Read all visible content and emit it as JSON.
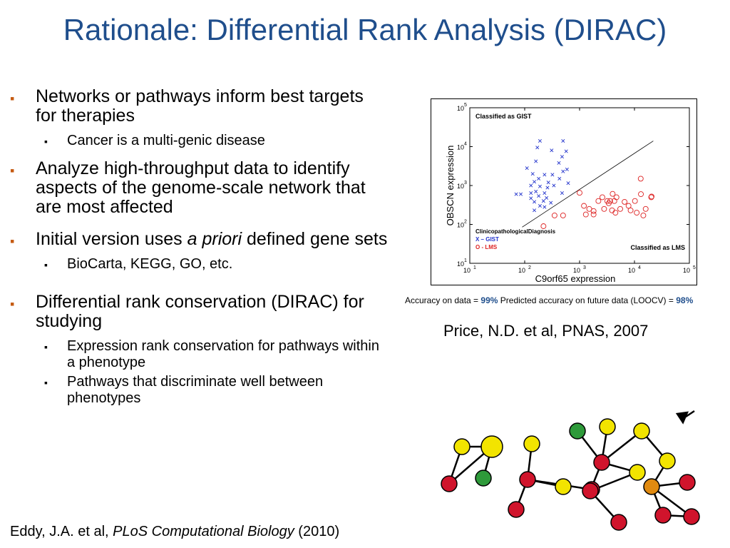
{
  "title": "Rationale: Differential Rank Analysis (DIRAC)",
  "bullets": [
    {
      "text": "Networks or pathways inform best targets for therapies",
      "sub": [
        "Cancer is a multi-genic disease"
      ]
    },
    {
      "text": "Analyze high-throughput data to identify aspects of the genome-scale network that are most affected",
      "sub": []
    },
    {
      "pre": "Initial version uses ",
      "em": "a priori",
      "post": " defined gene sets",
      "sub": [
        "BioCarta, KEGG, GO, etc."
      ]
    },
    {
      "text": "Differential rank conservation (DIRAC) for studying",
      "sub": [
        "Expression rank conservation for pathways within a phenotype",
        "Pathways that discriminate well between phenotypes"
      ]
    }
  ],
  "bullet_glyph": "▪",
  "chart_data": {
    "type": "scatter",
    "xlabel": "C9orf65 expression",
    "ylabel": "OBSCN expression",
    "xscale": "log",
    "yscale": "log",
    "xlim": [
      10,
      100000
    ],
    "ylim": [
      10,
      100000
    ],
    "x_ticks": [
      {
        "base": "10",
        "exp": "1"
      },
      {
        "base": "10",
        "exp": "2"
      },
      {
        "base": "10",
        "exp": "3"
      },
      {
        "base": "10",
        "exp": "4"
      },
      {
        "base": "10",
        "exp": "5"
      }
    ],
    "y_ticks": [
      {
        "base": "10",
        "exp": "1"
      },
      {
        "base": "10",
        "exp": "2"
      },
      {
        "base": "10",
        "exp": "3"
      },
      {
        "base": "10",
        "exp": "4"
      },
      {
        "base": "10",
        "exp": "5"
      }
    ],
    "annotations": {
      "top_left": "Classified as GIST",
      "bottom_right": "Classified as LMS"
    },
    "legend": {
      "title": "ClinicopathologicalDiagnosis",
      "placement": "bottom-left",
      "entries": [
        {
          "label": "X – GIST",
          "color": "#2233cc"
        },
        {
          "label": "O - LMS",
          "color": "#dd2222"
        }
      ]
    },
    "decision_line": [
      [
        90,
        85
      ],
      [
        22000,
        14000
      ]
    ],
    "series": [
      {
        "name": "GIST",
        "marker": "x",
        "color": "#2233cc",
        "points": [
          [
            190,
            14000
          ],
          [
            500,
            14000
          ],
          [
            170,
            9500
          ],
          [
            310,
            8000
          ],
          [
            570,
            7600
          ],
          [
            480,
            5500
          ],
          [
            160,
            4200
          ],
          [
            420,
            3800
          ],
          [
            110,
            2800
          ],
          [
            500,
            2300
          ],
          [
            590,
            2600
          ],
          [
            140,
            2000
          ],
          [
            230,
            1900
          ],
          [
            320,
            1900
          ],
          [
            180,
            1500
          ],
          [
            430,
            1500
          ],
          [
            270,
            1200
          ],
          [
            150,
            1250
          ],
          [
            620,
            1150
          ],
          [
            130,
            1000
          ],
          [
            190,
            950
          ],
          [
            260,
            880
          ],
          [
            340,
            1000
          ],
          [
            160,
            700
          ],
          [
            230,
            640
          ],
          [
            130,
            640
          ],
          [
            180,
            540
          ],
          [
            250,
            480
          ],
          [
            130,
            470
          ],
          [
            220,
            400
          ],
          [
            150,
            380
          ],
          [
            300,
            360
          ],
          [
            190,
            300
          ],
          [
            230,
            280
          ],
          [
            150,
            230
          ],
          [
            70,
            600
          ],
          [
            85,
            600
          ],
          [
            480,
            640
          ]
        ]
      },
      {
        "name": "LMS",
        "marker": "o",
        "color": "#dd2222",
        "points": [
          [
            1000,
            650
          ],
          [
            2600,
            500
          ],
          [
            4700,
            500
          ],
          [
            3200,
            400
          ],
          [
            3600,
            400
          ],
          [
            2200,
            400
          ],
          [
            3400,
            350
          ],
          [
            4300,
            400
          ],
          [
            6600,
            380
          ],
          [
            10200,
            400
          ],
          [
            13100,
            600
          ],
          [
            20200,
            500
          ],
          [
            1500,
            250
          ],
          [
            1800,
            220
          ],
          [
            1200,
            300
          ],
          [
            2800,
            250
          ],
          [
            3900,
            230
          ],
          [
            4500,
            200
          ],
          [
            5500,
            250
          ],
          [
            7800,
            300
          ],
          [
            11000,
            200
          ],
          [
            14500,
            170
          ],
          [
            16000,
            250
          ],
          [
            500,
            170
          ],
          [
            350,
            170
          ],
          [
            220,
            90
          ],
          [
            1300,
            180
          ],
          [
            1800,
            180
          ],
          [
            8500,
            230
          ],
          [
            20500,
            520
          ],
          [
            13000,
            1500
          ],
          [
            4000,
            610
          ]
        ]
      }
    ]
  },
  "accuracy": {
    "prefix": "Accuracy on data = ",
    "value": "99%",
    "mid": " Predicted accuracy on future data (LOOCV) = ",
    "value2": "98%"
  },
  "citation_right": "Price, N.D. et al, PNAS, 2007",
  "citation_bottom": {
    "authors": "Eddy, J.A. et al, ",
    "journal": "PLoS Computational Biology",
    "year": " (2010)"
  },
  "network": {
    "colors": {
      "yellow": "#f2e400",
      "red": "#d0142c",
      "green": "#2e9a3a",
      "orange": "#e08a10"
    },
    "nodes": [
      {
        "id": "n1",
        "color": "yellow"
      },
      {
        "id": "n2",
        "color": "yellow"
      },
      {
        "id": "n3",
        "color": "green"
      },
      {
        "id": "n4",
        "color": "red"
      },
      {
        "id": "n5",
        "color": "yellow"
      },
      {
        "id": "n6",
        "color": "red"
      },
      {
        "id": "n7",
        "color": "red"
      },
      {
        "id": "n8",
        "color": "yellow"
      },
      {
        "id": "n9",
        "color": "red"
      },
      {
        "id": "n10",
        "color": "green"
      },
      {
        "id": "n11",
        "color": "yellow"
      },
      {
        "id": "n12",
        "color": "red"
      },
      {
        "id": "n13",
        "color": "red"
      },
      {
        "id": "n14",
        "color": "yellow"
      },
      {
        "id": "n15",
        "color": "red"
      },
      {
        "id": "n16",
        "color": "yellow"
      },
      {
        "id": "n17",
        "color": "yellow"
      },
      {
        "id": "n18",
        "color": "red"
      },
      {
        "id": "n19",
        "color": "orange"
      },
      {
        "id": "n20",
        "color": "red"
      },
      {
        "id": "n21",
        "color": "red"
      }
    ],
    "edges": [
      [
        "n1",
        "n2"
      ],
      [
        "n1",
        "n4"
      ],
      [
        "n2",
        "n4"
      ],
      [
        "n2",
        "n3"
      ],
      [
        "n5",
        "n6"
      ],
      [
        "n6",
        "n7"
      ],
      [
        "n6",
        "n8"
      ],
      [
        "n6",
        "n9"
      ],
      [
        "n10",
        "n12"
      ],
      [
        "n11",
        "n12"
      ],
      [
        "n12",
        "n14"
      ],
      [
        "n12",
        "n13"
      ],
      [
        "n12",
        "n16"
      ],
      [
        "n13",
        "n15"
      ],
      [
        "n16",
        "n17"
      ],
      [
        "n17",
        "n19"
      ],
      [
        "n19",
        "n18"
      ],
      [
        "n19",
        "n21"
      ],
      [
        "n19",
        "n20"
      ],
      [
        "n18",
        "n21"
      ],
      [
        "n14",
        "n13"
      ]
    ]
  }
}
